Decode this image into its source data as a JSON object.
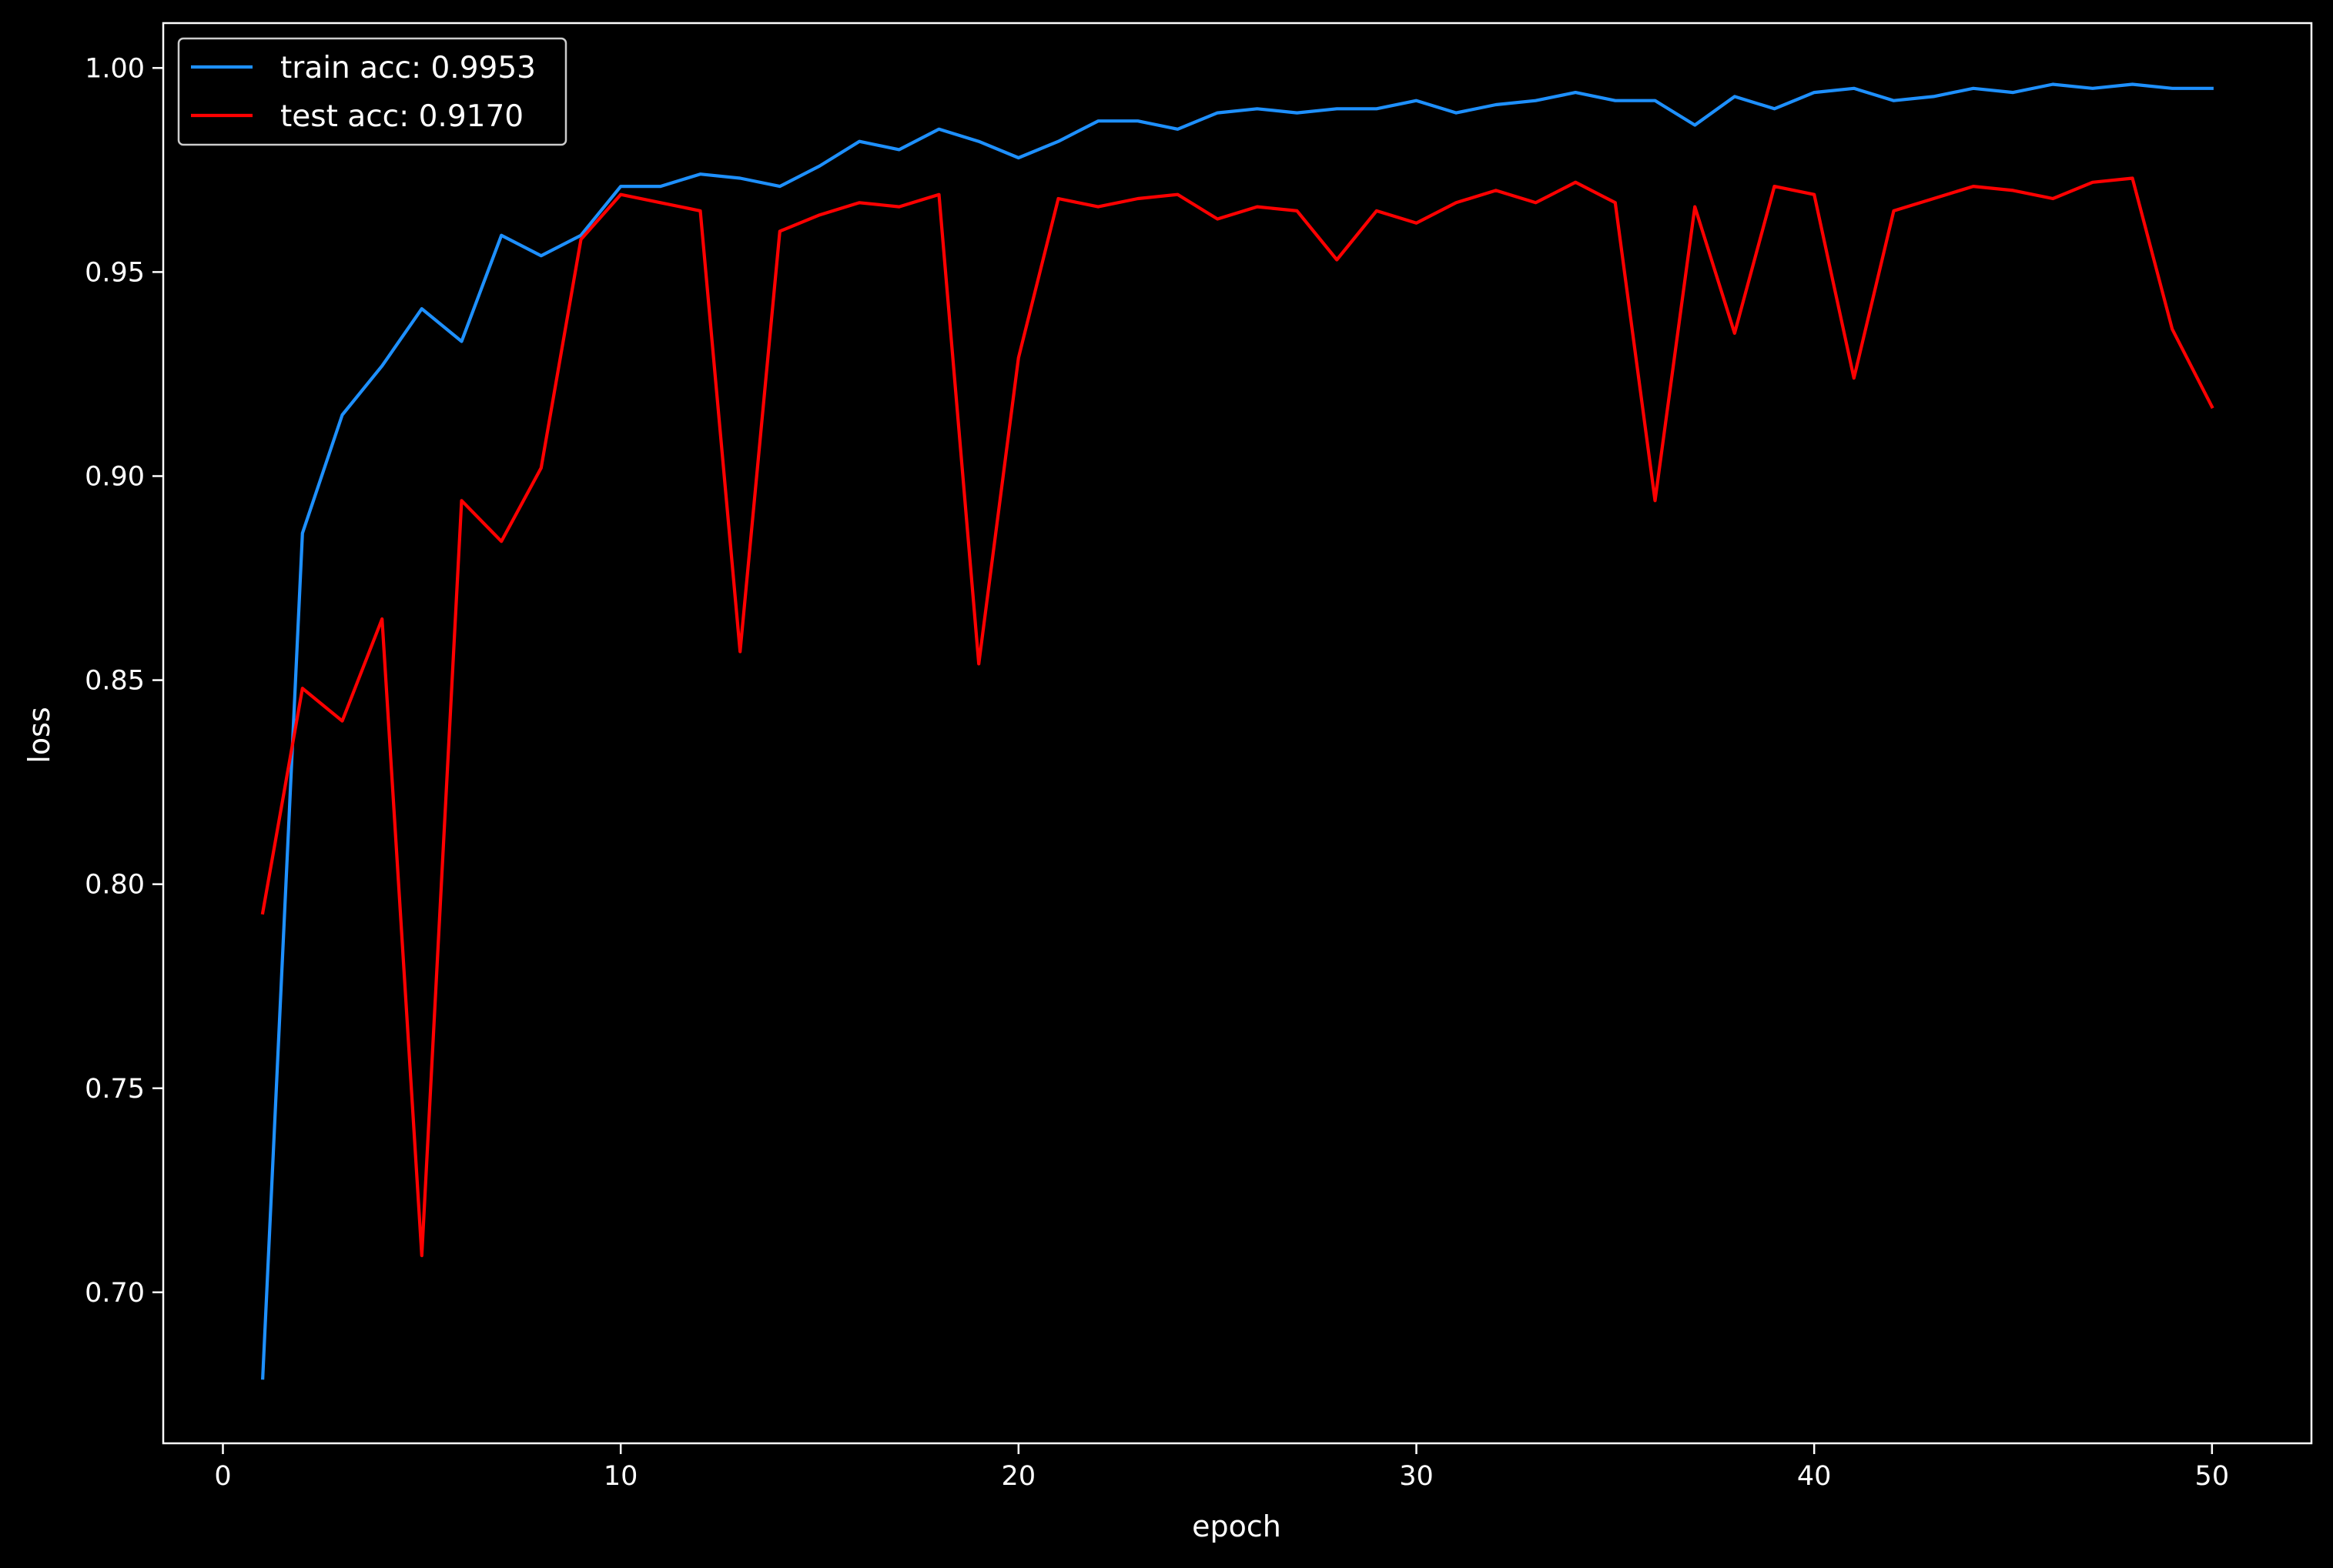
{
  "chart_data": {
    "type": "line",
    "title": "",
    "xlabel": "epoch",
    "ylabel": "loss",
    "xlim": [
      -1.5,
      52.5
    ],
    "ylim": [
      0.663,
      1.011
    ],
    "xticks": [
      0,
      10,
      20,
      30,
      40,
      50
    ],
    "xtick_labels": [
      "0",
      "10",
      "20",
      "30",
      "40",
      "50"
    ],
    "yticks": [
      0.7,
      0.75,
      0.8,
      0.85,
      0.9,
      0.95,
      1.0
    ],
    "ytick_labels": [
      "0.70",
      "0.75",
      "0.80",
      "0.85",
      "0.90",
      "0.95",
      "1.00"
    ],
    "grid": false,
    "legend_position": "top-left",
    "background_color": "#000000",
    "foreground_color": "#ffffff",
    "x": [
      1,
      2,
      3,
      4,
      5,
      6,
      7,
      8,
      9,
      10,
      11,
      12,
      13,
      14,
      15,
      16,
      17,
      18,
      19,
      20,
      21,
      22,
      23,
      24,
      25,
      26,
      27,
      28,
      29,
      30,
      31,
      32,
      33,
      34,
      35,
      36,
      37,
      38,
      39,
      40,
      41,
      42,
      43,
      44,
      45,
      46,
      47,
      48,
      49,
      50
    ],
    "series": [
      {
        "name": "train acc: 0.9953",
        "color": "#1e90ff",
        "values": [
          0.679,
          0.886,
          0.915,
          0.927,
          0.941,
          0.933,
          0.959,
          0.954,
          0.959,
          0.971,
          0.971,
          0.974,
          0.973,
          0.971,
          0.976,
          0.982,
          0.98,
          0.985,
          0.982,
          0.978,
          0.982,
          0.987,
          0.987,
          0.985,
          0.989,
          0.99,
          0.989,
          0.99,
          0.99,
          0.992,
          0.989,
          0.991,
          0.992,
          0.994,
          0.992,
          0.992,
          0.986,
          0.993,
          0.99,
          0.994,
          0.995,
          0.992,
          0.993,
          0.995,
          0.994,
          0.996,
          0.995,
          0.996,
          0.995,
          0.995
        ]
      },
      {
        "name": "test acc: 0.9170",
        "color": "#ff0000",
        "values": [
          0.793,
          0.848,
          0.84,
          0.865,
          0.709,
          0.894,
          0.884,
          0.902,
          0.958,
          0.969,
          0.967,
          0.965,
          0.857,
          0.96,
          0.964,
          0.967,
          0.966,
          0.969,
          0.854,
          0.929,
          0.968,
          0.966,
          0.968,
          0.969,
          0.963,
          0.966,
          0.965,
          0.953,
          0.965,
          0.962,
          0.967,
          0.97,
          0.967,
          0.972,
          0.967,
          0.894,
          0.966,
          0.935,
          0.971,
          0.969,
          0.924,
          0.965,
          0.968,
          0.971,
          0.97,
          0.968,
          0.972,
          0.973,
          0.936,
          0.917
        ]
      }
    ]
  }
}
